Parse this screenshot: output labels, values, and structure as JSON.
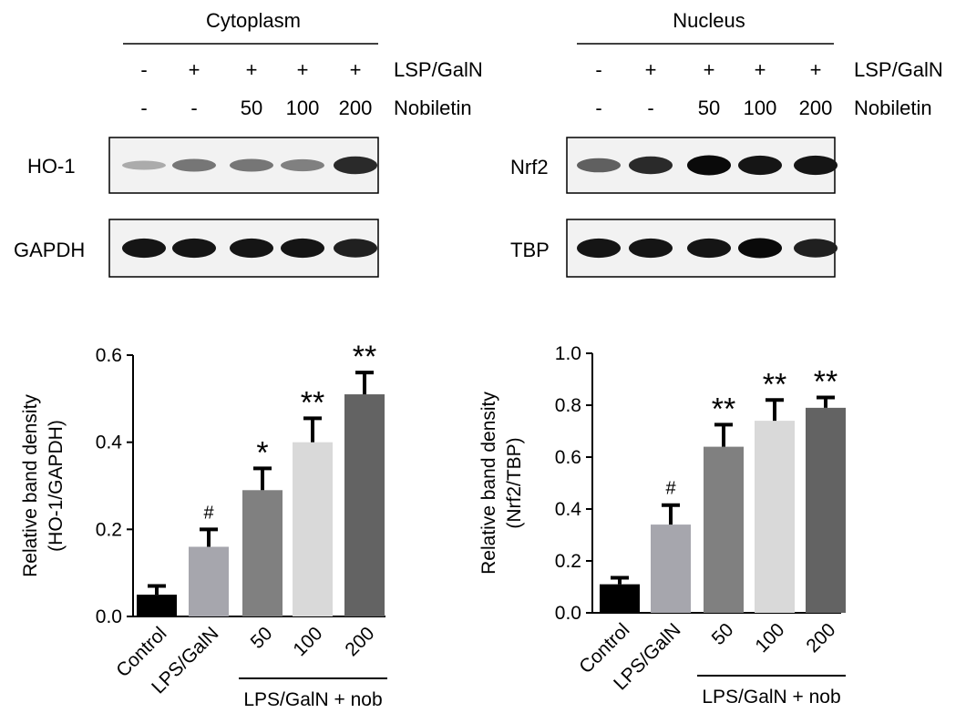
{
  "panels": [
    {
      "title": "Cytoplasm",
      "row1": {
        "values": [
          "-",
          "+",
          "+",
          "+",
          "+"
        ],
        "label": "LSP/GalN"
      },
      "row2": {
        "values": [
          "-",
          "-",
          "50",
          "100",
          "200"
        ],
        "label": "Nobiletin"
      },
      "blots": [
        {
          "label": "HO-1",
          "band_intensity": [
            0.25,
            0.5,
            0.5,
            0.45,
            0.85
          ]
        },
        {
          "label": "GAPDH",
          "band_intensity": [
            0.95,
            0.95,
            0.95,
            0.95,
            0.9
          ]
        }
      ]
    },
    {
      "title": "Nucleus",
      "row1": {
        "values": [
          "-",
          "+",
          "+",
          "+",
          "+"
        ],
        "label": "LSP/GalN"
      },
      "row2": {
        "values": [
          "-",
          "-",
          "50",
          "100",
          "200"
        ],
        "label": "Nobiletin"
      },
      "blots": [
        {
          "label": "Nrf2",
          "band_intensity": [
            0.6,
            0.85,
            1.0,
            0.95,
            0.95
          ]
        },
        {
          "label": "TBP",
          "band_intensity": [
            0.95,
            0.95,
            0.95,
            1.0,
            0.9
          ]
        }
      ]
    }
  ],
  "chart_data": [
    {
      "type": "bar",
      "ylabel_lines": [
        "Relative band density",
        "(HO-1/GAPDH)"
      ],
      "categories": [
        "Control",
        "LPS/GalN",
        "50",
        "100",
        "200"
      ],
      "values": [
        0.05,
        0.16,
        0.29,
        0.4,
        0.51
      ],
      "errors": [
        0.02,
        0.04,
        0.05,
        0.055,
        0.05
      ],
      "significance": [
        "",
        "#",
        "*",
        "**",
        "**"
      ],
      "colors": [
        "#000000",
        "#a6a6ad",
        "#808080",
        "#d9d9d9",
        "#636363"
      ],
      "ylim": [
        0,
        0.6
      ],
      "yticks": [
        "0.0",
        "0.2",
        "0.4",
        "0.6"
      ],
      "group_label": "LPS/GalN + nob"
    },
    {
      "type": "bar",
      "ylabel_lines": [
        "Relative band density",
        "(Nrf2/TBP)"
      ],
      "categories": [
        "Control",
        "LPS/GalN",
        "50",
        "100",
        "200"
      ],
      "values": [
        0.11,
        0.34,
        0.64,
        0.74,
        0.79
      ],
      "errors": [
        0.025,
        0.075,
        0.085,
        0.08,
        0.04
      ],
      "significance": [
        "",
        "#",
        "**",
        "**",
        "**"
      ],
      "colors": [
        "#000000",
        "#a6a6ad",
        "#808080",
        "#d9d9d9",
        "#636363"
      ],
      "ylim": [
        0,
        1.0
      ],
      "yticks": [
        "0.0",
        "0.2",
        "0.4",
        "0.6",
        "0.8",
        "1.0"
      ],
      "group_label": "LPS/GalN + nob"
    }
  ]
}
